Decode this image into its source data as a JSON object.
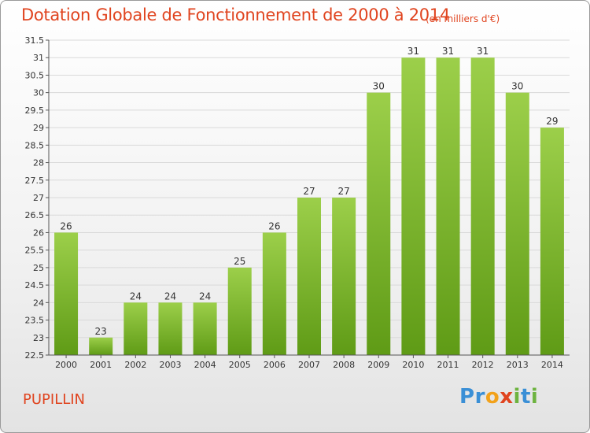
{
  "header": {
    "title": "Dotation Globale de Fonctionnement de 2000 à 2014",
    "subtitle": "(en milliers d'€)"
  },
  "footer": {
    "commune": "PUPILLIN",
    "logo_letters": [
      {
        "char": "P",
        "color": "#3a8fd6"
      },
      {
        "char": "r",
        "color": "#3a8fd6"
      },
      {
        "char": "o",
        "color": "#f2a21b"
      },
      {
        "char": "x",
        "color": "#e0441f"
      },
      {
        "char": "i",
        "color": "#6db33f"
      },
      {
        "char": "t",
        "color": "#3a8fd6"
      },
      {
        "char": "i",
        "color": "#6db33f"
      }
    ]
  },
  "colors": {
    "accent": "#e0441f",
    "bar_light": "#9ccf4a",
    "bar_dark": "#5f9b16",
    "axis": "#555555",
    "grid": "#d9d9d9"
  },
  "chart_data": {
    "type": "bar",
    "title": "Dotation Globale de Fonctionnement de 2000 à 2014",
    "subtitle": "(en milliers d'€)",
    "xlabel": "",
    "ylabel": "",
    "categories": [
      "2000",
      "2001",
      "2002",
      "2003",
      "2004",
      "2005",
      "2006",
      "2007",
      "2008",
      "2009",
      "2010",
      "2011",
      "2012",
      "2013",
      "2014"
    ],
    "values": [
      26,
      23,
      24,
      24,
      24,
      25,
      26,
      27,
      27,
      30,
      31,
      31,
      31,
      30,
      29
    ],
    "data_labels": [
      "26",
      "23",
      "24",
      "24",
      "24",
      "25",
      "26",
      "27",
      "27",
      "30",
      "31",
      "31",
      "31",
      "30",
      "29"
    ],
    "ylim": [
      22.5,
      31.5
    ],
    "yticks": [
      22.5,
      23,
      23.5,
      24,
      24.5,
      25,
      25.5,
      26,
      26.5,
      27,
      27.5,
      28,
      28.5,
      29,
      29.5,
      30,
      30.5,
      31,
      31.5
    ],
    "ytick_labels": [
      "22.5",
      "23",
      "23.5",
      "24",
      "24.5",
      "25",
      "25.5",
      "26",
      "26.5",
      "27",
      "27.5",
      "28",
      "28.5",
      "29",
      "29.5",
      "30",
      "30.5",
      "31",
      "31.5"
    ],
    "grid": true,
    "legend": "none"
  }
}
